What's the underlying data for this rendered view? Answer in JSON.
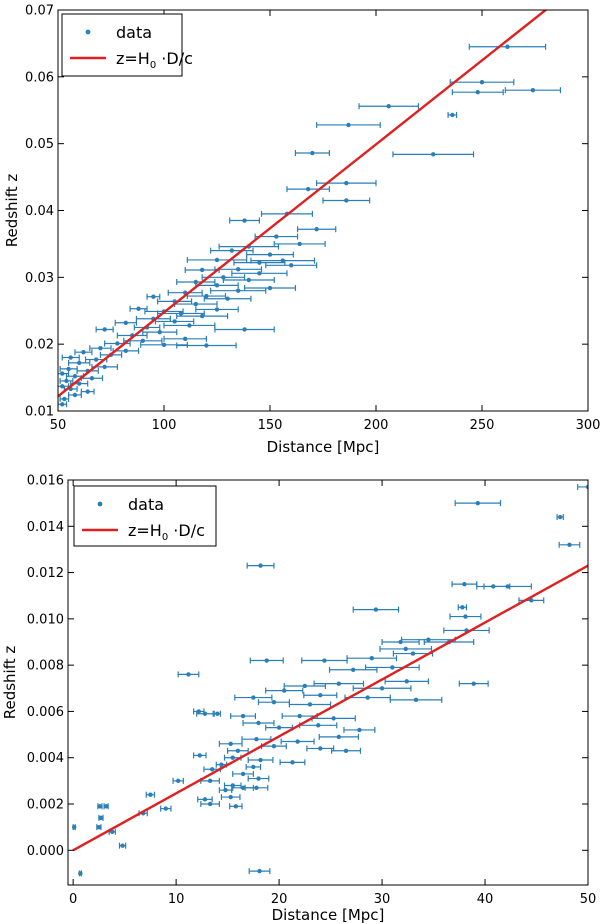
{
  "colors": {
    "data": "#2a7fb8",
    "fit": "#e01f1f"
  },
  "chart_data": [
    {
      "type": "scatter",
      "xlabel": "Distance [Mpc]",
      "ylabel": "Redshift z",
      "xlim": [
        50,
        300
      ],
      "ylim": [
        0.01,
        0.07
      ],
      "xticks": [
        50,
        100,
        150,
        200,
        250,
        300
      ],
      "xtick_labels": [
        "50",
        "100",
        "150",
        "200",
        "250",
        "300"
      ],
      "yticks": [
        0.01,
        0.02,
        0.03,
        0.04,
        0.05,
        0.06,
        0.07
      ],
      "ytick_labels": [
        "0.01",
        "0.02",
        "0.03",
        "0.04",
        "0.05",
        "0.06",
        "0.07"
      ],
      "legend": {
        "data_label": "data",
        "fit_prefix": "z=H",
        "fit_sub": "0",
        "fit_suffix": " ·D/c",
        "position": "top-left"
      },
      "fit_line": {
        "x": [
          50,
          282
        ],
        "y": [
          0.0122,
          0.0705
        ]
      },
      "points": [
        [
          262,
          0.0645,
          18
        ],
        [
          250,
          0.0592,
          15
        ],
        [
          274,
          0.058,
          13
        ],
        [
          248,
          0.0577,
          12
        ],
        [
          206,
          0.0556,
          14
        ],
        [
          236,
          0.0543,
          2
        ],
        [
          187,
          0.0528,
          15
        ],
        [
          170,
          0.0486,
          8
        ],
        [
          227,
          0.0484,
          19
        ],
        [
          186,
          0.0441,
          14
        ],
        [
          168,
          0.0432,
          10
        ],
        [
          186,
          0.0415,
          11
        ],
        [
          158,
          0.0395,
          12
        ],
        [
          138,
          0.0385,
          7
        ],
        [
          172,
          0.0372,
          9
        ],
        [
          153,
          0.0361,
          10
        ],
        [
          164,
          0.035,
          12
        ],
        [
          140,
          0.0346,
          14
        ],
        [
          132,
          0.034,
          10
        ],
        [
          150,
          0.0334,
          11
        ],
        [
          156,
          0.0325,
          15
        ],
        [
          145,
          0.0322,
          12
        ],
        [
          125,
          0.0326,
          14
        ],
        [
          160,
          0.0318,
          12
        ],
        [
          135,
          0.0312,
          11
        ],
        [
          118,
          0.0311,
          8
        ],
        [
          145,
          0.0306,
          13
        ],
        [
          128,
          0.03,
          10
        ],
        [
          140,
          0.0296,
          12
        ],
        [
          115,
          0.0293,
          9
        ],
        [
          125,
          0.0288,
          10
        ],
        [
          150,
          0.0284,
          12
        ],
        [
          135,
          0.028,
          13
        ],
        [
          110,
          0.0277,
          8
        ],
        [
          120,
          0.0272,
          9
        ],
        [
          95,
          0.0271,
          3
        ],
        [
          130,
          0.0268,
          11
        ],
        [
          105,
          0.0264,
          8
        ],
        [
          115,
          0.026,
          10
        ],
        [
          88,
          0.0253,
          4
        ],
        [
          125,
          0.0252,
          10
        ],
        [
          100,
          0.0249,
          9
        ],
        [
          108,
          0.0246,
          11
        ],
        [
          118,
          0.0242,
          12
        ],
        [
          95,
          0.0238,
          8
        ],
        [
          105,
          0.0234,
          9
        ],
        [
          82,
          0.0232,
          5
        ],
        [
          112,
          0.0228,
          12
        ],
        [
          138,
          0.0222,
          14
        ],
        [
          92,
          0.0225,
          6
        ],
        [
          72,
          0.0222,
          4
        ],
        [
          98,
          0.0218,
          8
        ],
        [
          85,
          0.0213,
          7
        ],
        [
          110,
          0.0208,
          10
        ],
        [
          90,
          0.0205,
          9
        ],
        [
          78,
          0.0201,
          6
        ],
        [
          100,
          0.0199,
          11
        ],
        [
          120,
          0.0198,
          14
        ],
        [
          70,
          0.0194,
          5
        ],
        [
          82,
          0.019,
          6
        ],
        [
          62,
          0.0188,
          4
        ],
        [
          75,
          0.0184,
          5
        ],
        [
          56,
          0.018,
          4
        ],
        [
          68,
          0.0177,
          5
        ],
        [
          60,
          0.0172,
          5
        ],
        [
          72,
          0.0166,
          6
        ],
        [
          55,
          0.0163,
          4
        ],
        [
          64,
          0.016,
          5
        ],
        [
          52,
          0.0156,
          3
        ],
        [
          58,
          0.0152,
          4
        ],
        [
          66,
          0.0149,
          5
        ],
        [
          54,
          0.0145,
          3
        ],
        [
          60,
          0.0141,
          4
        ],
        [
          52,
          0.0137,
          3
        ],
        [
          56,
          0.0133,
          3
        ],
        [
          64,
          0.0129,
          3
        ],
        [
          58,
          0.0124,
          3
        ],
        [
          53,
          0.0118,
          2
        ],
        [
          52,
          0.011,
          2
        ]
      ]
    },
    {
      "type": "scatter",
      "xlabel": "Distance [Mpc]",
      "ylabel": "Redshift z",
      "xlim": [
        -0.5,
        50
      ],
      "ylim": [
        -0.0015,
        0.016
      ],
      "xticks": [
        0,
        10,
        20,
        30,
        40,
        50
      ],
      "xtick_labels": [
        "0",
        "10",
        "20",
        "30",
        "40",
        "50"
      ],
      "yticks": [
        0.0,
        0.002,
        0.004,
        0.006,
        0.008,
        0.01,
        0.012,
        0.014,
        0.016
      ],
      "ytick_labels": [
        "0.000",
        "0.002",
        "0.004",
        "0.006",
        "0.008",
        "0.010",
        "0.012",
        "0.014",
        "0.016"
      ],
      "legend": {
        "data_label": "data",
        "fit_prefix": "z=H",
        "fit_sub": "0",
        "fit_suffix": " ·D/c",
        "position": "top-left"
      },
      "fit_line": {
        "x": [
          0,
          50
        ],
        "y": [
          0.0,
          0.0123
        ]
      },
      "points": [
        [
          39.3,
          0.015,
          2.2
        ],
        [
          50,
          0.0157,
          1
        ],
        [
          47.3,
          0.0144,
          0.3
        ],
        [
          48.2,
          0.0132,
          1
        ],
        [
          18.2,
          0.0123,
          1.3
        ],
        [
          38,
          0.0115,
          1.2
        ],
        [
          42.2,
          0.0114,
          2.3
        ],
        [
          40.8,
          0.0114,
          1.6
        ],
        [
          44.5,
          0.0108,
          1.2
        ],
        [
          29.4,
          0.0104,
          2.2
        ],
        [
          37.8,
          0.0105,
          0.4
        ],
        [
          38.1,
          0.0101,
          1.5
        ],
        [
          34.5,
          0.0091,
          2.6
        ],
        [
          31.8,
          0.009,
          1.8
        ],
        [
          32.3,
          0.0087,
          2.5
        ],
        [
          38.2,
          0.0095,
          2.2
        ],
        [
          36.5,
          0.009,
          2.4
        ],
        [
          33,
          0.0085,
          1.9
        ],
        [
          29,
          0.0083,
          2.4
        ],
        [
          18.8,
          0.0082,
          1.6
        ],
        [
          24.4,
          0.0082,
          2.2
        ],
        [
          31,
          0.0079,
          2.6
        ],
        [
          27.2,
          0.0078,
          2.3
        ],
        [
          11.2,
          0.0076,
          1
        ],
        [
          32.4,
          0.0073,
          2.1
        ],
        [
          38.9,
          0.0072,
          1.4
        ],
        [
          25.8,
          0.0072,
          2.4
        ],
        [
          22.5,
          0.0071,
          2
        ],
        [
          30,
          0.007,
          2.8
        ],
        [
          20.5,
          0.0069,
          1.8
        ],
        [
          17.5,
          0.0066,
          1.8
        ],
        [
          24,
          0.0067,
          1.6
        ],
        [
          33.3,
          0.0065,
          2.5
        ],
        [
          28.6,
          0.0066,
          2.2
        ],
        [
          19.5,
          0.0064,
          1.5
        ],
        [
          23,
          0.0063,
          2
        ],
        [
          12.2,
          0.006,
          0.5
        ],
        [
          12.8,
          0.0059,
          0.8
        ],
        [
          14,
          0.0059,
          0.3
        ],
        [
          16.5,
          0.0058,
          1.2
        ],
        [
          22,
          0.0058,
          1.7
        ],
        [
          25.3,
          0.0057,
          2.1
        ],
        [
          18,
          0.0055,
          1.5
        ],
        [
          20,
          0.0053,
          1.3
        ],
        [
          23.8,
          0.0054,
          1.8
        ],
        [
          27.8,
          0.0052,
          1.5
        ],
        [
          25.8,
          0.0049,
          1.9
        ],
        [
          17.8,
          0.0048,
          1.4
        ],
        [
          21.8,
          0.0047,
          1.6
        ],
        [
          15.3,
          0.0046,
          1.1
        ],
        [
          19.5,
          0.0045,
          1.2
        ],
        [
          24,
          0.0044,
          1.3
        ],
        [
          16,
          0.0043,
          1
        ],
        [
          26.5,
          0.0043,
          1.4
        ],
        [
          12.3,
          0.0041,
          0.6
        ],
        [
          15.5,
          0.004,
          0.8
        ],
        [
          18.2,
          0.0039,
          1.2
        ],
        [
          21.3,
          0.0038,
          1.2
        ],
        [
          14.4,
          0.0037,
          0.5
        ],
        [
          17.5,
          0.0036,
          0.7
        ],
        [
          13.5,
          0.0035,
          0.8
        ],
        [
          16.5,
          0.0033,
          1
        ],
        [
          10.2,
          0.003,
          0.5
        ],
        [
          18,
          0.0031,
          1
        ],
        [
          13.3,
          0.003,
          0.9
        ],
        [
          15.5,
          0.0028,
          0.8
        ],
        [
          16.5,
          0.0027,
          1
        ],
        [
          14.8,
          0.0026,
          0.6
        ],
        [
          17.8,
          0.0027,
          1.1
        ],
        [
          7.5,
          0.0024,
          0.4
        ],
        [
          12.8,
          0.0022,
          0.7
        ],
        [
          15.3,
          0.0023,
          0.9
        ],
        [
          9,
          0.0018,
          0.5
        ],
        [
          13.3,
          0.002,
          0.9
        ],
        [
          15.8,
          0.0019,
          0.6
        ],
        [
          6.8,
          0.0016,
          0.4
        ],
        [
          3.2,
          0.0019,
          0.2
        ],
        [
          2.6,
          0.0019,
          0.2
        ],
        [
          2.7,
          0.0014,
          0.2
        ],
        [
          4.8,
          0.0002,
          0.3
        ],
        [
          3.8,
          0.0008,
          0.3
        ],
        [
          2.5,
          0.001,
          0.2
        ],
        [
          0.1,
          0.001,
          0.1
        ],
        [
          0.7,
          -0.001,
          0.1
        ],
        [
          18.1,
          -0.0009,
          1
        ]
      ]
    }
  ]
}
